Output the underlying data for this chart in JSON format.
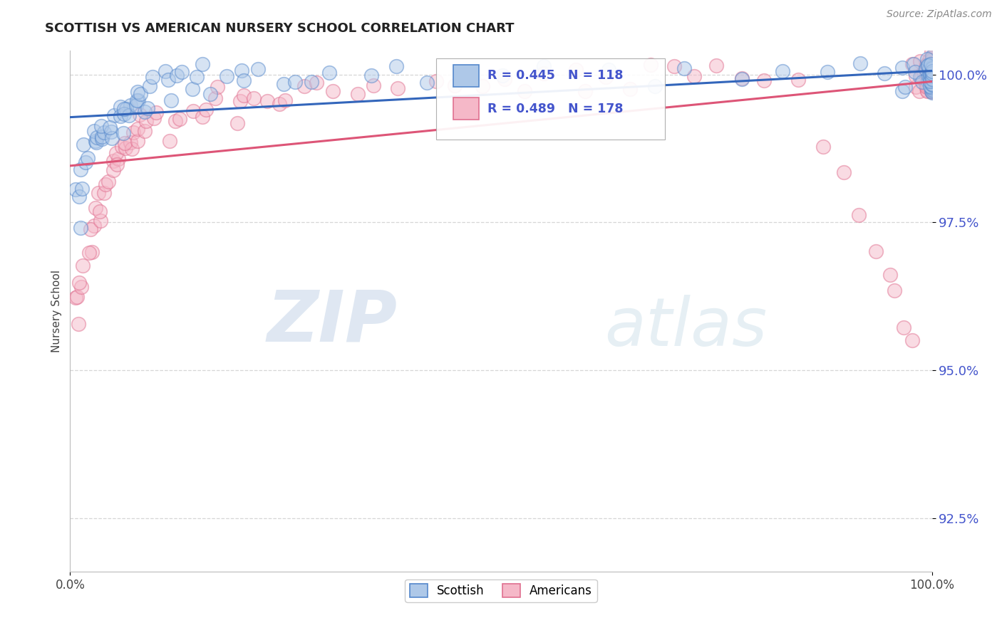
{
  "title": "SCOTTISH VS AMERICAN NURSERY SCHOOL CORRELATION CHART",
  "source": "Source: ZipAtlas.com",
  "ylabel": "Nursery School",
  "xlim": [
    0.0,
    1.0
  ],
  "ylim": [
    0.916,
    1.004
  ],
  "yticks": [
    0.925,
    0.95,
    0.975,
    1.0
  ],
  "ytick_labels": [
    "92.5%",
    "95.0%",
    "97.5%",
    "100.0%"
  ],
  "xtick_labels": [
    "0.0%",
    "100.0%"
  ],
  "legend_blue_r": "R = 0.445",
  "legend_blue_n": "N = 118",
  "legend_pink_r": "R = 0.489",
  "legend_pink_n": "N = 178",
  "blue_fill": "#aec8e8",
  "blue_edge": "#5588cc",
  "pink_fill": "#f5b8c8",
  "pink_edge": "#e07090",
  "blue_line": "#3366bb",
  "pink_line": "#dd5577",
  "ytick_color": "#4455cc",
  "background_color": "#ffffff",
  "watermark1": "ZIP",
  "watermark2": "atlas",
  "scottish_x": [
    0.005,
    0.008,
    0.01,
    0.012,
    0.015,
    0.018,
    0.02,
    0.022,
    0.025,
    0.028,
    0.03,
    0.032,
    0.035,
    0.038,
    0.04,
    0.042,
    0.045,
    0.048,
    0.05,
    0.052,
    0.055,
    0.058,
    0.06,
    0.062,
    0.065,
    0.068,
    0.07,
    0.072,
    0.075,
    0.078,
    0.08,
    0.082,
    0.085,
    0.088,
    0.09,
    0.095,
    0.1,
    0.105,
    0.11,
    0.115,
    0.12,
    0.13,
    0.14,
    0.15,
    0.16,
    0.17,
    0.18,
    0.19,
    0.2,
    0.22,
    0.24,
    0.26,
    0.28,
    0.3,
    0.35,
    0.38,
    0.42,
    0.5,
    0.55,
    0.62,
    0.68,
    0.72,
    0.78,
    0.82,
    0.88,
    0.92,
    0.95,
    0.97,
    0.97,
    0.97,
    0.98,
    0.98,
    0.98,
    0.99,
    0.99,
    0.99,
    1.0,
    1.0,
    1.0,
    1.0,
    1.0,
    1.0,
    1.0,
    1.0,
    1.0,
    1.0,
    1.0,
    1.0,
    1.0,
    1.0,
    1.0,
    1.0,
    1.0,
    1.0,
    1.0,
    1.0,
    1.0,
    1.0,
    1.0,
    1.0,
    1.0,
    1.0,
    1.0,
    1.0,
    1.0,
    1.0,
    1.0,
    1.0,
    1.0,
    1.0,
    1.0,
    1.0,
    1.0,
    1.0,
    1.0,
    1.0,
    1.0,
    1.0
  ],
  "scottish_y": [
    0.975,
    0.978,
    0.98,
    0.982,
    0.983,
    0.985,
    0.986,
    0.987,
    0.988,
    0.988,
    0.989,
    0.989,
    0.99,
    0.99,
    0.991,
    0.991,
    0.992,
    0.992,
    0.993,
    0.993,
    0.993,
    0.994,
    0.994,
    0.994,
    0.995,
    0.995,
    0.995,
    0.995,
    0.996,
    0.996,
    0.996,
    0.996,
    0.997,
    0.997,
    0.997,
    0.997,
    0.998,
    0.998,
    0.998,
    0.998,
    0.998,
    0.999,
    0.999,
    0.999,
    0.999,
    0.999,
    0.999,
    0.999,
    1.0,
    1.0,
    1.0,
    1.0,
    1.0,
    1.0,
    1.0,
    1.0,
    1.0,
    1.0,
    1.0,
    1.0,
    1.0,
    1.0,
    1.0,
    1.0,
    1.0,
    1.0,
    1.0,
    1.0,
    1.0,
    1.0,
    1.0,
    1.0,
    1.0,
    1.0,
    1.0,
    1.0,
    1.0,
    1.0,
    1.0,
    1.0,
    1.0,
    1.0,
    1.0,
    1.0,
    1.0,
    1.0,
    1.0,
    1.0,
    1.0,
    1.0,
    1.0,
    1.0,
    1.0,
    1.0,
    1.0,
    1.0,
    1.0,
    1.0,
    1.0,
    1.0,
    1.0,
    1.0,
    1.0,
    1.0,
    1.0,
    1.0,
    1.0,
    1.0,
    1.0,
    1.0,
    1.0,
    1.0,
    1.0,
    1.0,
    1.0,
    1.0,
    1.0,
    1.0
  ],
  "american_x": [
    0.005,
    0.008,
    0.01,
    0.012,
    0.015,
    0.018,
    0.02,
    0.022,
    0.025,
    0.028,
    0.03,
    0.032,
    0.035,
    0.038,
    0.04,
    0.042,
    0.045,
    0.048,
    0.05,
    0.052,
    0.055,
    0.058,
    0.06,
    0.062,
    0.065,
    0.068,
    0.07,
    0.072,
    0.075,
    0.078,
    0.08,
    0.085,
    0.09,
    0.095,
    0.1,
    0.11,
    0.12,
    0.13,
    0.14,
    0.15,
    0.16,
    0.17,
    0.18,
    0.19,
    0.2,
    0.21,
    0.22,
    0.23,
    0.24,
    0.25,
    0.27,
    0.29,
    0.31,
    0.33,
    0.35,
    0.38,
    0.42,
    0.45,
    0.48,
    0.5,
    0.52,
    0.55,
    0.58,
    0.6,
    0.62,
    0.65,
    0.68,
    0.7,
    0.72,
    0.75,
    0.78,
    0.8,
    0.85,
    0.88,
    0.9,
    0.92,
    0.93,
    0.95,
    0.96,
    0.97,
    0.97,
    0.98,
    0.98,
    0.98,
    0.99,
    0.99,
    0.99,
    0.99,
    1.0,
    1.0,
    1.0,
    1.0,
    1.0,
    1.0,
    1.0,
    1.0,
    1.0,
    1.0,
    1.0,
    1.0,
    1.0,
    1.0,
    1.0,
    1.0,
    1.0,
    1.0,
    1.0,
    1.0,
    1.0,
    1.0,
    1.0,
    1.0,
    1.0,
    1.0,
    1.0,
    1.0,
    1.0,
    1.0,
    1.0,
    1.0,
    1.0,
    1.0,
    1.0,
    1.0,
    1.0,
    1.0,
    1.0,
    1.0,
    1.0,
    1.0,
    1.0,
    1.0,
    1.0,
    1.0,
    1.0,
    1.0,
    1.0,
    1.0,
    1.0,
    1.0,
    1.0,
    1.0,
    1.0,
    1.0,
    1.0,
    1.0,
    1.0,
    1.0,
    1.0,
    1.0,
    1.0,
    1.0,
    1.0,
    1.0,
    1.0,
    1.0,
    1.0,
    1.0,
    1.0,
    1.0,
    1.0,
    1.0,
    1.0,
    1.0,
    1.0,
    1.0,
    1.0,
    1.0,
    1.0,
    1.0,
    1.0,
    1.0,
    1.0,
    1.0,
    1.0,
    1.0,
    1.0,
    1.0
  ],
  "american_y": [
    0.958,
    0.961,
    0.963,
    0.965,
    0.967,
    0.969,
    0.971,
    0.972,
    0.974,
    0.975,
    0.977,
    0.978,
    0.979,
    0.98,
    0.981,
    0.982,
    0.983,
    0.984,
    0.984,
    0.985,
    0.986,
    0.986,
    0.987,
    0.987,
    0.988,
    0.988,
    0.989,
    0.989,
    0.99,
    0.99,
    0.99,
    0.991,
    0.991,
    0.992,
    0.992,
    0.993,
    0.993,
    0.994,
    0.994,
    0.994,
    0.995,
    0.995,
    0.995,
    0.996,
    0.996,
    0.996,
    0.996,
    0.996,
    0.997,
    0.997,
    0.997,
    0.997,
    0.997,
    0.998,
    0.998,
    0.998,
    0.998,
    0.998,
    0.999,
    0.999,
    0.999,
    0.999,
    0.999,
    0.999,
    0.999,
    0.999,
    1.0,
    1.0,
    1.0,
    1.0,
    1.0,
    1.0,
    1.0,
    0.988,
    0.984,
    0.976,
    0.971,
    0.965,
    0.962,
    0.958,
    1.0,
    0.954,
    1.0,
    1.0,
    1.0,
    1.0,
    1.0,
    1.0,
    1.0,
    1.0,
    1.0,
    1.0,
    1.0,
    1.0,
    1.0,
    1.0,
    1.0,
    1.0,
    1.0,
    1.0,
    1.0,
    1.0,
    1.0,
    1.0,
    1.0,
    1.0,
    1.0,
    1.0,
    1.0,
    1.0,
    1.0,
    1.0,
    1.0,
    1.0,
    1.0,
    1.0,
    1.0,
    1.0,
    1.0,
    1.0,
    1.0,
    1.0,
    1.0,
    1.0,
    1.0,
    1.0,
    1.0,
    1.0,
    1.0,
    1.0,
    1.0,
    1.0,
    1.0,
    1.0,
    1.0,
    1.0,
    1.0,
    1.0,
    1.0,
    1.0,
    1.0,
    1.0,
    1.0,
    1.0,
    1.0,
    1.0,
    1.0,
    1.0,
    1.0,
    1.0,
    1.0,
    1.0,
    1.0,
    1.0,
    1.0,
    1.0,
    1.0,
    1.0,
    1.0,
    1.0,
    1.0,
    1.0,
    1.0,
    1.0,
    1.0,
    1.0,
    1.0,
    1.0,
    1.0,
    1.0,
    1.0,
    1.0,
    1.0,
    1.0,
    1.0,
    1.0,
    1.0,
    1.0
  ]
}
